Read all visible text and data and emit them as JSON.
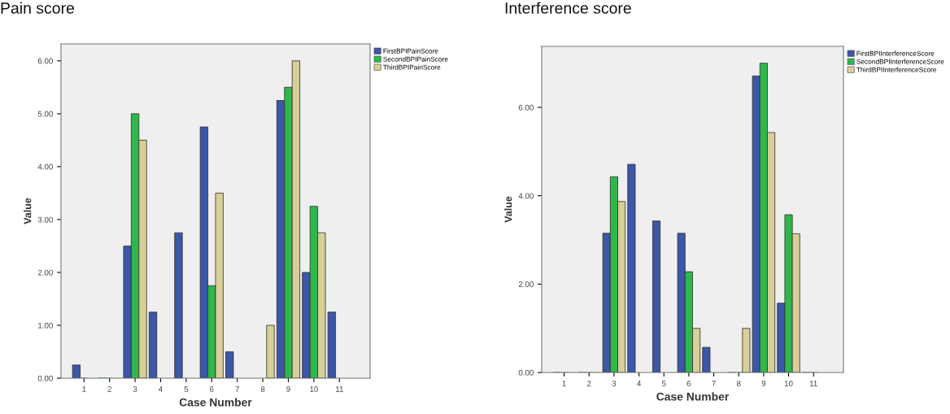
{
  "chart_data": [
    {
      "type": "bar",
      "title": "Pain score",
      "xlabel": "Case Number",
      "ylabel": "Value",
      "categories": [
        "1",
        "2",
        "3",
        "4",
        "5",
        "6",
        "7",
        "8",
        "9",
        "10",
        "11"
      ],
      "ylim": [
        0,
        6.32
      ],
      "yticks": [
        {
          "value": 0,
          "label": "0.00"
        },
        {
          "value": 1,
          "label": "1.00"
        },
        {
          "value": 2,
          "label": "2.00"
        },
        {
          "value": 3,
          "label": "3.00"
        },
        {
          "value": 4,
          "label": "4.00"
        },
        {
          "value": 5,
          "label": "5.00"
        },
        {
          "value": 6,
          "label": "6.00"
        }
      ],
      "grid": false,
      "legend": "top right",
      "series": [
        {
          "name": "FirstBPIPainScore",
          "color": "#3c56a8",
          "values": [
            0.25,
            0,
            2.5,
            1.25,
            2.75,
            4.75,
            0.5,
            null,
            5.25,
            2.0,
            1.25
          ]
        },
        {
          "name": "SecondBPIPainScore",
          "color": "#2db84a",
          "values": [
            0,
            0,
            5.0,
            null,
            null,
            1.75,
            null,
            null,
            5.5,
            3.25,
            null
          ]
        },
        {
          "name": "ThirdBPIPainScore",
          "color": "#d8cf98",
          "values": [
            null,
            0,
            4.5,
            null,
            null,
            3.5,
            null,
            1.0,
            6.0,
            2.75,
            null
          ]
        }
      ]
    },
    {
      "type": "bar",
      "title": "Interference score",
      "xlabel": "Case Number",
      "ylabel": "Value",
      "categories": [
        "1",
        "2",
        "3",
        "4",
        "5",
        "6",
        "7",
        "8",
        "9",
        "10",
        "11"
      ],
      "ylim": [
        0,
        7.38
      ],
      "yticks": [
        {
          "value": 0,
          "label": "0.00"
        },
        {
          "value": 2,
          "label": "2.00"
        },
        {
          "value": 4,
          "label": "4.00"
        },
        {
          "value": 6,
          "label": "6.00"
        }
      ],
      "grid": false,
      "legend": "top right",
      "series": [
        {
          "name": "FirstBPIInterferenceScore",
          "color": "#3c56a8",
          "values": [
            0,
            0,
            3.15,
            4.71,
            3.43,
            3.15,
            0.57,
            0,
            6.71,
            1.57,
            0
          ]
        },
        {
          "name": "SecondBPIInterferenceScore",
          "color": "#2db84a",
          "values": [
            0,
            0,
            4.43,
            null,
            null,
            2.28,
            null,
            0,
            7.0,
            3.57,
            0
          ]
        },
        {
          "name": "ThirdBPIInterferenceScore",
          "color": "#d8cf98",
          "values": [
            0,
            0,
            3.87,
            null,
            null,
            1.0,
            null,
            1.0,
            5.43,
            3.14,
            null
          ]
        }
      ]
    }
  ]
}
